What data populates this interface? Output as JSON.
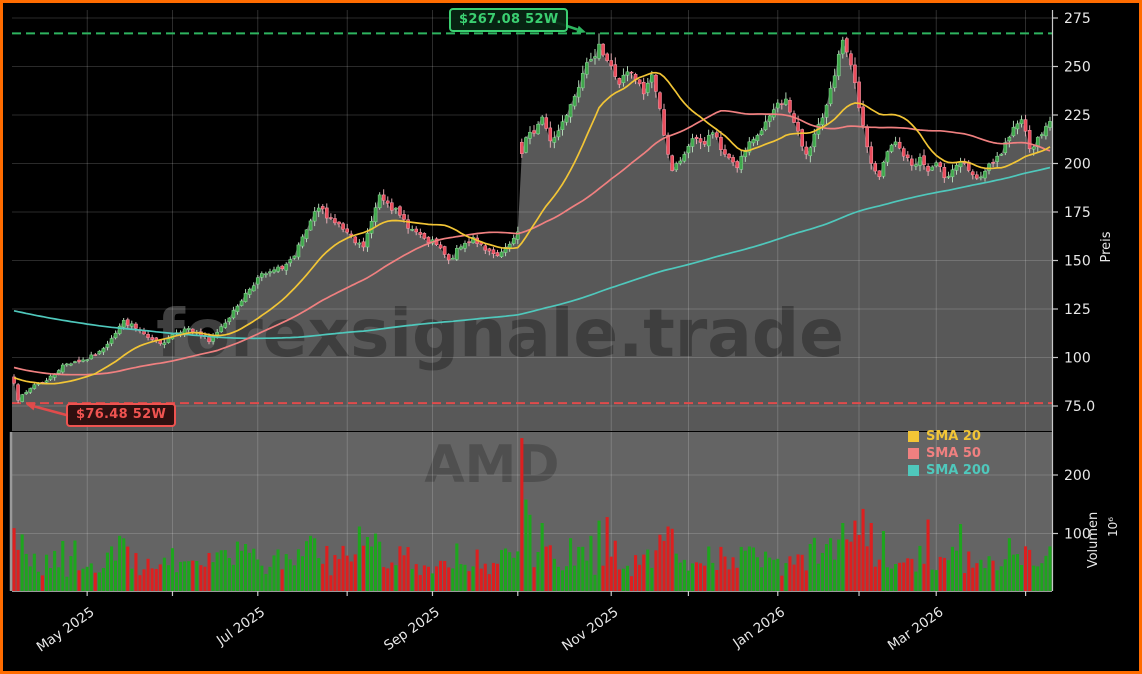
{
  "watermarks": {
    "brand": "forexsignale.trade",
    "symbol": "AMD"
  },
  "annotations": {
    "high": {
      "label": "$267.08 52W",
      "price": 267.08,
      "color": "#3bcf71"
    },
    "low": {
      "label": "$76.48 52W",
      "price": 76.48,
      "color": "#ef5350"
    }
  },
  "colors": {
    "border": "#ff6c00",
    "background": "#000000",
    "price_fill": "#585858",
    "volume_bg": "#646464",
    "grid": "rgba(255,255,255,0.22)",
    "axis_text": "#e8e8e8",
    "spine": "#c8c8c8",
    "candle_up": "#3fa64b",
    "candle_up_edge": "#8fd99a",
    "candle_down": "#ea4d5c",
    "candle_down_edge": "#f79fae",
    "wick_up": "#bfe5c4",
    "wick_down": "#f4b6bf",
    "volume_up": "#1ea51e",
    "volume_down": "#dd1f1f",
    "dashed_high": "#2eb45f",
    "dashed_low": "#e04b4b",
    "watermark_brand": "#3e3e3e",
    "watermark_symbol": "#4f4f4f"
  },
  "chart_data": {
    "type": "candlestick",
    "symbol": "AMD",
    "candles_count": 256,
    "price_axis": {
      "label": "Preis",
      "ticks": [
        "275",
        "250",
        "225",
        "200",
        "175",
        "150",
        "125",
        "100",
        "75.0"
      ],
      "tick_values": [
        275,
        250,
        225,
        200,
        175,
        150,
        125,
        100,
        75
      ]
    },
    "volume_axis": {
      "label": "Volumen",
      "unit": "10⁶",
      "ticks": [
        "200",
        "100"
      ],
      "tick_values": [
        200,
        100
      ]
    },
    "x_ticks": [
      {
        "i": 18,
        "label": "May 2025"
      },
      {
        "i": 39,
        "label": ""
      },
      {
        "i": 60,
        "label": "Jul 2025"
      },
      {
        "i": 82,
        "label": ""
      },
      {
        "i": 103,
        "label": "Sep 2025"
      },
      {
        "i": 124,
        "label": ""
      },
      {
        "i": 147,
        "label": "Nov 2025"
      },
      {
        "i": 166,
        "label": ""
      },
      {
        "i": 188,
        "label": "Jan 2026"
      },
      {
        "i": 208,
        "label": ""
      },
      {
        "i": 227,
        "label": "Mar 2026"
      },
      {
        "i": 249,
        "label": ""
      }
    ],
    "close_anchors": [
      [
        0,
        87
      ],
      [
        1,
        78
      ],
      [
        3,
        82
      ],
      [
        5,
        86
      ],
      [
        8,
        88
      ],
      [
        12,
        96
      ],
      [
        15,
        98
      ],
      [
        18,
        99
      ],
      [
        21,
        103
      ],
      [
        24,
        110
      ],
      [
        27,
        119
      ],
      [
        30,
        115
      ],
      [
        33,
        110
      ],
      [
        36,
        107
      ],
      [
        39,
        112
      ],
      [
        42,
        115
      ],
      [
        45,
        113
      ],
      [
        48,
        108
      ],
      [
        51,
        116
      ],
      [
        54,
        124
      ],
      [
        57,
        133
      ],
      [
        60,
        141
      ],
      [
        63,
        144
      ],
      [
        66,
        146
      ],
      [
        69,
        152
      ],
      [
        73,
        170
      ],
      [
        75,
        177
      ],
      [
        78,
        172
      ],
      [
        81,
        166
      ],
      [
        84,
        159
      ],
      [
        86,
        157
      ],
      [
        88,
        170
      ],
      [
        90,
        184
      ],
      [
        92,
        180
      ],
      [
        95,
        173
      ],
      [
        98,
        166
      ],
      [
        101,
        161
      ],
      [
        104,
        158
      ],
      [
        107,
        150
      ],
      [
        110,
        157
      ],
      [
        113,
        162
      ],
      [
        116,
        155
      ],
      [
        119,
        152
      ],
      [
        122,
        158
      ],
      [
        124,
        165
      ],
      [
        125,
        205
      ],
      [
        126,
        213
      ],
      [
        128,
        216
      ],
      [
        130,
        224
      ],
      [
        132,
        212
      ],
      [
        134,
        217
      ],
      [
        137,
        231
      ],
      [
        140,
        247
      ],
      [
        142,
        253
      ],
      [
        144,
        262
      ],
      [
        145,
        256
      ],
      [
        147,
        250
      ],
      [
        149,
        241
      ],
      [
        151,
        247
      ],
      [
        153,
        243
      ],
      [
        155,
        236
      ],
      [
        157,
        246
      ],
      [
        159,
        228
      ],
      [
        161,
        205
      ],
      [
        162,
        196
      ],
      [
        164,
        201
      ],
      [
        166,
        209
      ],
      [
        168,
        213
      ],
      [
        170,
        210
      ],
      [
        172,
        216
      ],
      [
        174,
        207
      ],
      [
        176,
        203
      ],
      [
        178,
        198
      ],
      [
        180,
        206
      ],
      [
        182,
        212
      ],
      [
        184,
        217
      ],
      [
        186,
        224
      ],
      [
        188,
        231
      ],
      [
        190,
        233
      ],
      [
        192,
        221
      ],
      [
        194,
        209
      ],
      [
        195,
        205
      ],
      [
        197,
        215
      ],
      [
        199,
        223
      ],
      [
        201,
        239
      ],
      [
        203,
        256
      ],
      [
        204,
        263
      ],
      [
        205,
        257
      ],
      [
        207,
        241
      ],
      [
        209,
        219
      ],
      [
        211,
        200
      ],
      [
        213,
        193
      ],
      [
        215,
        206
      ],
      [
        217,
        211
      ],
      [
        219,
        204
      ],
      [
        221,
        199
      ],
      [
        223,
        203
      ],
      [
        225,
        196
      ],
      [
        227,
        200
      ],
      [
        229,
        193
      ],
      [
        231,
        197
      ],
      [
        233,
        201
      ],
      [
        235,
        196
      ],
      [
        237,
        192
      ],
      [
        239,
        196
      ],
      [
        241,
        200
      ],
      [
        243,
        205
      ],
      [
        245,
        213
      ],
      [
        247,
        221
      ],
      [
        248,
        223
      ],
      [
        250,
        208
      ],
      [
        252,
        213
      ],
      [
        254,
        219
      ],
      [
        255,
        222
      ]
    ],
    "sma_seed_anchors": [
      [
        -200,
        172
      ],
      [
        -160,
        150
      ],
      [
        -120,
        127
      ],
      [
        -90,
        117
      ],
      [
        -60,
        110
      ],
      [
        -30,
        96
      ],
      [
        -10,
        90
      ],
      [
        -1,
        86
      ]
    ],
    "volume_spikes": [
      [
        1,
        72
      ],
      [
        15,
        88
      ],
      [
        24,
        78
      ],
      [
        57,
        82
      ],
      [
        73,
        96
      ],
      [
        85,
        112
      ],
      [
        90,
        86
      ],
      [
        125,
        263
      ],
      [
        126,
        158
      ],
      [
        127,
        132
      ],
      [
        130,
        118
      ],
      [
        137,
        92
      ],
      [
        142,
        96
      ],
      [
        144,
        122
      ],
      [
        146,
        128
      ],
      [
        159,
        98
      ],
      [
        161,
        112
      ],
      [
        162,
        108
      ],
      [
        182,
        76
      ],
      [
        201,
        92
      ],
      [
        204,
        118
      ],
      [
        207,
        122
      ],
      [
        209,
        142
      ],
      [
        211,
        118
      ],
      [
        225,
        124
      ],
      [
        233,
        116
      ],
      [
        245,
        92
      ],
      [
        250,
        72
      ],
      [
        255,
        78
      ]
    ],
    "forced_opens": [
      [
        125,
        211
      ]
    ],
    "pins": {
      "low_index": 1,
      "low_value": 76.48,
      "high_index": 144,
      "high_value": 267.08
    },
    "price_range": [
      62,
      279
    ],
    "volume_range_millions": [
      0,
      273
    ],
    "smas": [
      {
        "label": "SMA 20",
        "period": 20,
        "color": "#f2c536"
      },
      {
        "label": "SMA 50",
        "period": 50,
        "color": "#f08080"
      },
      {
        "label": "SMA 200",
        "period": 200,
        "color": "#4fc8bc"
      }
    ]
  }
}
